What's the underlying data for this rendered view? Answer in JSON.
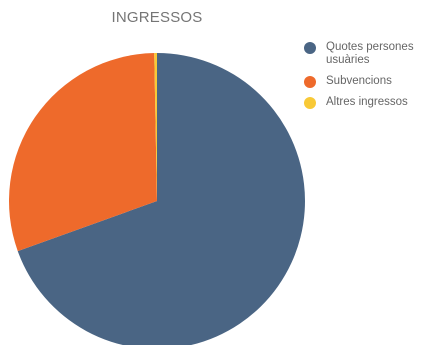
{
  "chart_data": {
    "type": "pie",
    "title": "INGRESSOS",
    "legend_position": "right",
    "slices": [
      {
        "label": "Quotes persones usuàries",
        "value": 69.5,
        "color": "#4a6584"
      },
      {
        "label": "Subvencions",
        "value": 30.2,
        "color": "#ee6a2b"
      },
      {
        "label": "Altres ingressos",
        "value": 0.3,
        "color": "#f8c937"
      }
    ]
  }
}
